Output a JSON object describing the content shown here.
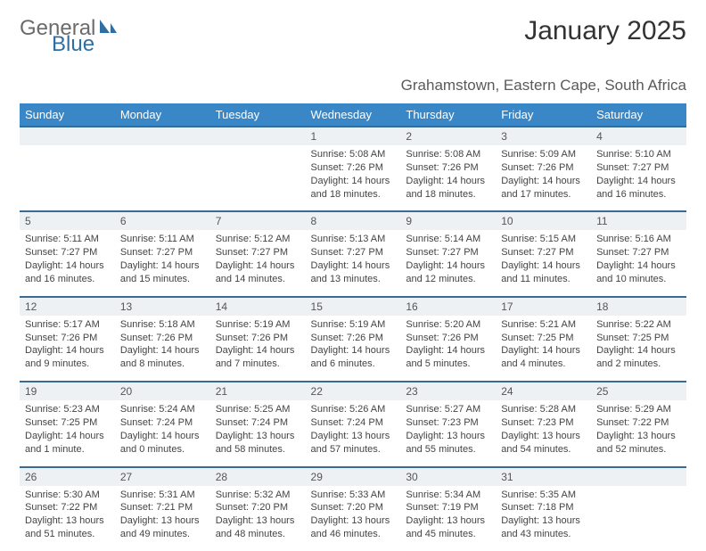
{
  "brand": {
    "part1": "General",
    "part2": "Blue"
  },
  "title": "January 2025",
  "location": "Grahamstown, Eastern Cape, South Africa",
  "colors": {
    "header_bg": "#3a87c7",
    "header_text": "#ffffff",
    "daynum_bg": "#eef1f3",
    "daynum_border": "#3a6a8f",
    "body_text": "#444444",
    "brand_gray": "#6b6b6b",
    "brand_blue": "#2f6fa3"
  },
  "weekdays": [
    "Sunday",
    "Monday",
    "Tuesday",
    "Wednesday",
    "Thursday",
    "Friday",
    "Saturday"
  ],
  "weeks": [
    [
      null,
      null,
      null,
      {
        "n": "1",
        "sr": "Sunrise: 5:08 AM",
        "ss": "Sunset: 7:26 PM",
        "d1": "Daylight: 14 hours",
        "d2": "and 18 minutes."
      },
      {
        "n": "2",
        "sr": "Sunrise: 5:08 AM",
        "ss": "Sunset: 7:26 PM",
        "d1": "Daylight: 14 hours",
        "d2": "and 18 minutes."
      },
      {
        "n": "3",
        "sr": "Sunrise: 5:09 AM",
        "ss": "Sunset: 7:26 PM",
        "d1": "Daylight: 14 hours",
        "d2": "and 17 minutes."
      },
      {
        "n": "4",
        "sr": "Sunrise: 5:10 AM",
        "ss": "Sunset: 7:27 PM",
        "d1": "Daylight: 14 hours",
        "d2": "and 16 minutes."
      }
    ],
    [
      {
        "n": "5",
        "sr": "Sunrise: 5:11 AM",
        "ss": "Sunset: 7:27 PM",
        "d1": "Daylight: 14 hours",
        "d2": "and 16 minutes."
      },
      {
        "n": "6",
        "sr": "Sunrise: 5:11 AM",
        "ss": "Sunset: 7:27 PM",
        "d1": "Daylight: 14 hours",
        "d2": "and 15 minutes."
      },
      {
        "n": "7",
        "sr": "Sunrise: 5:12 AM",
        "ss": "Sunset: 7:27 PM",
        "d1": "Daylight: 14 hours",
        "d2": "and 14 minutes."
      },
      {
        "n": "8",
        "sr": "Sunrise: 5:13 AM",
        "ss": "Sunset: 7:27 PM",
        "d1": "Daylight: 14 hours",
        "d2": "and 13 minutes."
      },
      {
        "n": "9",
        "sr": "Sunrise: 5:14 AM",
        "ss": "Sunset: 7:27 PM",
        "d1": "Daylight: 14 hours",
        "d2": "and 12 minutes."
      },
      {
        "n": "10",
        "sr": "Sunrise: 5:15 AM",
        "ss": "Sunset: 7:27 PM",
        "d1": "Daylight: 14 hours",
        "d2": "and 11 minutes."
      },
      {
        "n": "11",
        "sr": "Sunrise: 5:16 AM",
        "ss": "Sunset: 7:27 PM",
        "d1": "Daylight: 14 hours",
        "d2": "and 10 minutes."
      }
    ],
    [
      {
        "n": "12",
        "sr": "Sunrise: 5:17 AM",
        "ss": "Sunset: 7:26 PM",
        "d1": "Daylight: 14 hours",
        "d2": "and 9 minutes."
      },
      {
        "n": "13",
        "sr": "Sunrise: 5:18 AM",
        "ss": "Sunset: 7:26 PM",
        "d1": "Daylight: 14 hours",
        "d2": "and 8 minutes."
      },
      {
        "n": "14",
        "sr": "Sunrise: 5:19 AM",
        "ss": "Sunset: 7:26 PM",
        "d1": "Daylight: 14 hours",
        "d2": "and 7 minutes."
      },
      {
        "n": "15",
        "sr": "Sunrise: 5:19 AM",
        "ss": "Sunset: 7:26 PM",
        "d1": "Daylight: 14 hours",
        "d2": "and 6 minutes."
      },
      {
        "n": "16",
        "sr": "Sunrise: 5:20 AM",
        "ss": "Sunset: 7:26 PM",
        "d1": "Daylight: 14 hours",
        "d2": "and 5 minutes."
      },
      {
        "n": "17",
        "sr": "Sunrise: 5:21 AM",
        "ss": "Sunset: 7:25 PM",
        "d1": "Daylight: 14 hours",
        "d2": "and 4 minutes."
      },
      {
        "n": "18",
        "sr": "Sunrise: 5:22 AM",
        "ss": "Sunset: 7:25 PM",
        "d1": "Daylight: 14 hours",
        "d2": "and 2 minutes."
      }
    ],
    [
      {
        "n": "19",
        "sr": "Sunrise: 5:23 AM",
        "ss": "Sunset: 7:25 PM",
        "d1": "Daylight: 14 hours",
        "d2": "and 1 minute."
      },
      {
        "n": "20",
        "sr": "Sunrise: 5:24 AM",
        "ss": "Sunset: 7:24 PM",
        "d1": "Daylight: 14 hours",
        "d2": "and 0 minutes."
      },
      {
        "n": "21",
        "sr": "Sunrise: 5:25 AM",
        "ss": "Sunset: 7:24 PM",
        "d1": "Daylight: 13 hours",
        "d2": "and 58 minutes."
      },
      {
        "n": "22",
        "sr": "Sunrise: 5:26 AM",
        "ss": "Sunset: 7:24 PM",
        "d1": "Daylight: 13 hours",
        "d2": "and 57 minutes."
      },
      {
        "n": "23",
        "sr": "Sunrise: 5:27 AM",
        "ss": "Sunset: 7:23 PM",
        "d1": "Daylight: 13 hours",
        "d2": "and 55 minutes."
      },
      {
        "n": "24",
        "sr": "Sunrise: 5:28 AM",
        "ss": "Sunset: 7:23 PM",
        "d1": "Daylight: 13 hours",
        "d2": "and 54 minutes."
      },
      {
        "n": "25",
        "sr": "Sunrise: 5:29 AM",
        "ss": "Sunset: 7:22 PM",
        "d1": "Daylight: 13 hours",
        "d2": "and 52 minutes."
      }
    ],
    [
      {
        "n": "26",
        "sr": "Sunrise: 5:30 AM",
        "ss": "Sunset: 7:22 PM",
        "d1": "Daylight: 13 hours",
        "d2": "and 51 minutes."
      },
      {
        "n": "27",
        "sr": "Sunrise: 5:31 AM",
        "ss": "Sunset: 7:21 PM",
        "d1": "Daylight: 13 hours",
        "d2": "and 49 minutes."
      },
      {
        "n": "28",
        "sr": "Sunrise: 5:32 AM",
        "ss": "Sunset: 7:20 PM",
        "d1": "Daylight: 13 hours",
        "d2": "and 48 minutes."
      },
      {
        "n": "29",
        "sr": "Sunrise: 5:33 AM",
        "ss": "Sunset: 7:20 PM",
        "d1": "Daylight: 13 hours",
        "d2": "and 46 minutes."
      },
      {
        "n": "30",
        "sr": "Sunrise: 5:34 AM",
        "ss": "Sunset: 7:19 PM",
        "d1": "Daylight: 13 hours",
        "d2": "and 45 minutes."
      },
      {
        "n": "31",
        "sr": "Sunrise: 5:35 AM",
        "ss": "Sunset: 7:18 PM",
        "d1": "Daylight: 13 hours",
        "d2": "and 43 minutes."
      },
      null
    ]
  ]
}
